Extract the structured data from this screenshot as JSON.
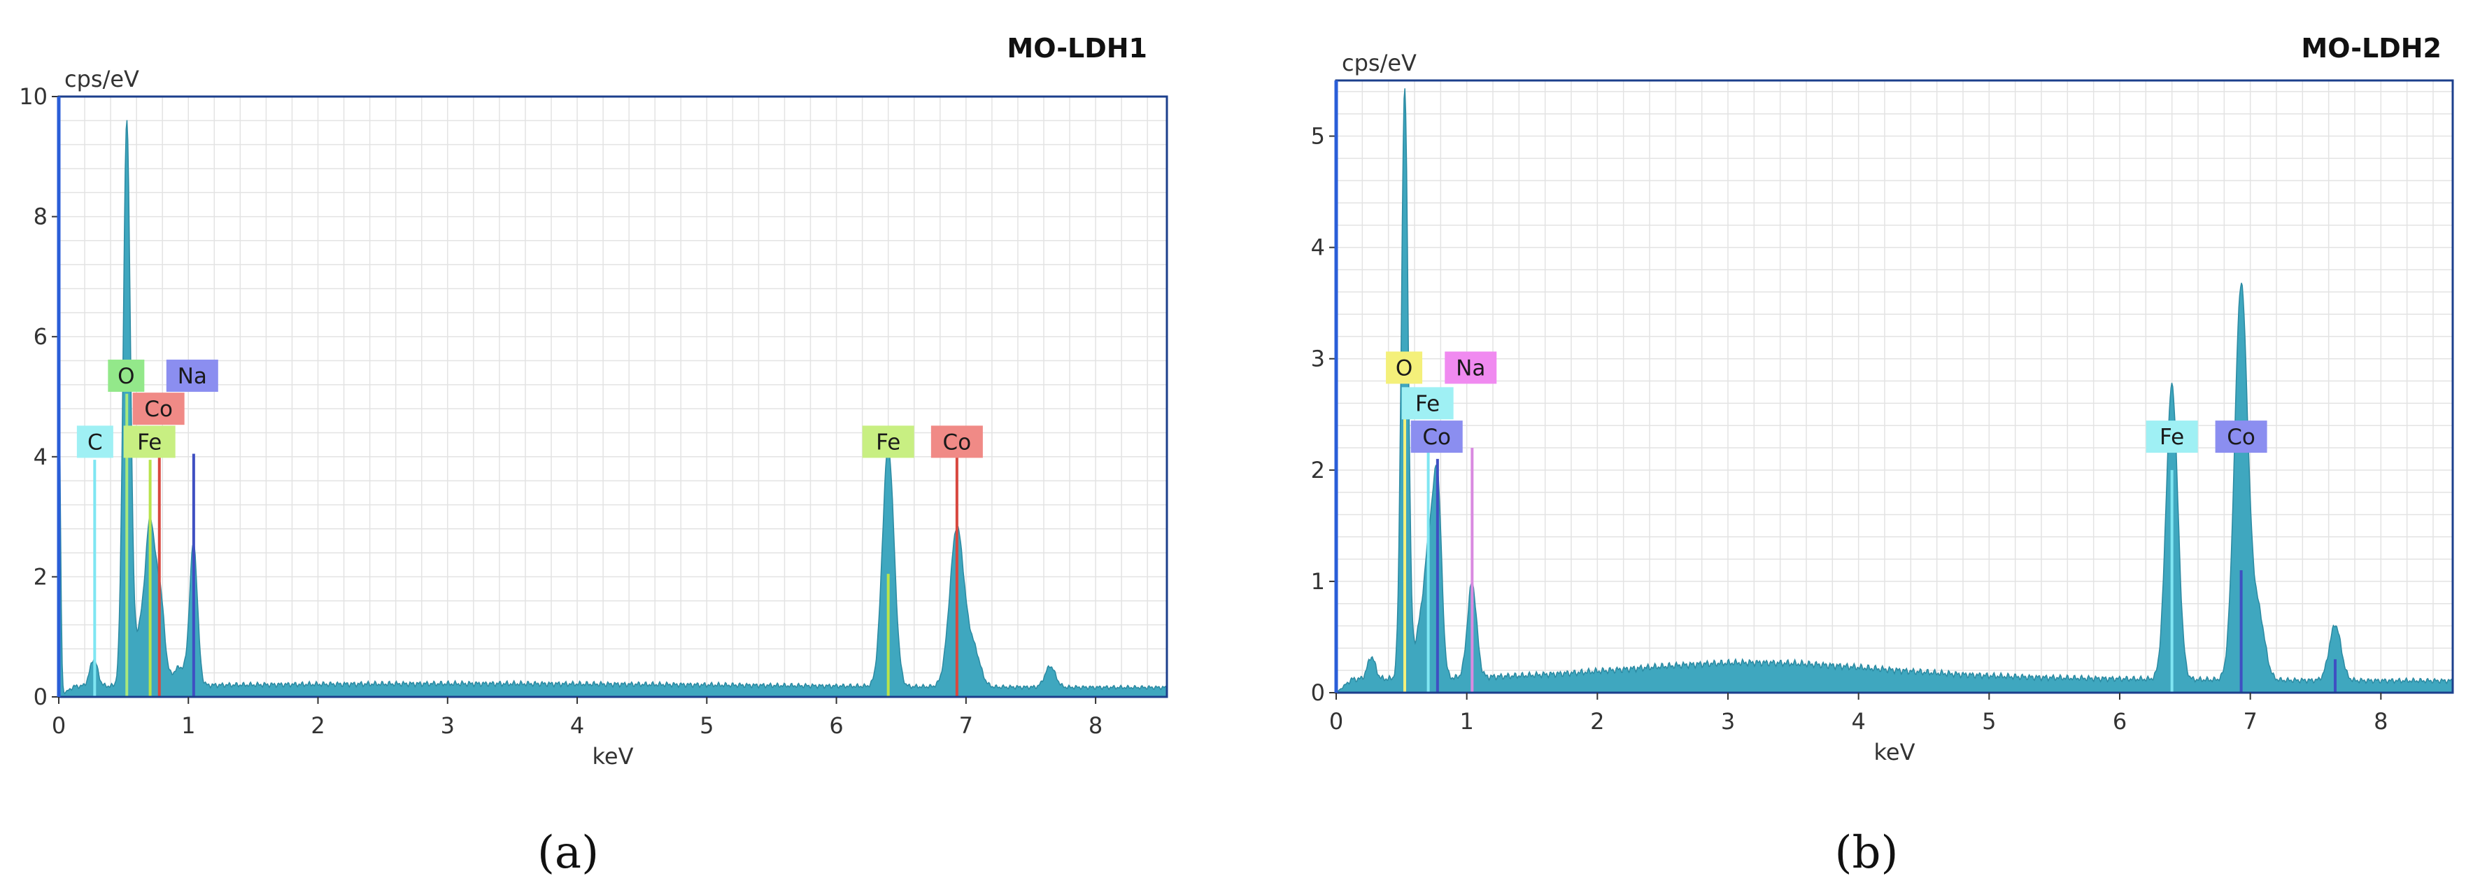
{
  "colors": {
    "spectrum_fill": "#3fa7bf",
    "spectrum_stroke": "#2b8aa2",
    "frame": "#1c3f8c",
    "grid": "#e3e3e3",
    "axis_text": "#333333"
  },
  "chart_data": [
    {
      "type": "area",
      "panel_label": "(a)",
      "title": "MO-LDH1",
      "ylabel": "cps/eV",
      "xlabel": "keV",
      "xlim": [
        0,
        8.55
      ],
      "ylim": [
        0,
        10
      ],
      "x_ticks": [
        "0",
        "1",
        "2",
        "3",
        "4",
        "5",
        "6",
        "7",
        "8"
      ],
      "y_ticks": [
        "0",
        "2",
        "4",
        "6",
        "8",
        "10"
      ],
      "y_tick_values": [
        0,
        2,
        4,
        6,
        8,
        10
      ],
      "x_minor_step": 0.2,
      "y_minor_step": 0.4,
      "baseline": 0.22,
      "peaks": [
        {
          "x": 0.0,
          "h": 5.6,
          "w": 0.012
        },
        {
          "x": 0.27,
          "h": 0.45,
          "w": 0.03
        },
        {
          "x": 0.525,
          "h": 9.4,
          "w": 0.028
        },
        {
          "x": 0.63,
          "h": 0.9,
          "w": 0.04
        },
        {
          "x": 0.705,
          "h": 2.5,
          "w": 0.035
        },
        {
          "x": 0.78,
          "h": 1.5,
          "w": 0.035
        },
        {
          "x": 0.93,
          "h": 0.3,
          "w": 0.05
        },
        {
          "x": 1.04,
          "h": 2.35,
          "w": 0.03
        },
        {
          "x": 6.4,
          "h": 4.0,
          "w": 0.045
        },
        {
          "x": 6.93,
          "h": 2.65,
          "w": 0.055
        },
        {
          "x": 7.06,
          "h": 0.6,
          "w": 0.05
        },
        {
          "x": 7.65,
          "h": 0.35,
          "w": 0.04
        }
      ],
      "lines": [
        {
          "x": 0.277,
          "y": 3.95,
          "color": "#7fe6f2"
        },
        {
          "x": 0.525,
          "y": 5.05,
          "color": "#a8e87d"
        },
        {
          "x": 0.705,
          "y": 3.95,
          "color": "#b8e44c"
        },
        {
          "x": 0.776,
          "y": 4.0,
          "color": "#d8483f"
        },
        {
          "x": 1.041,
          "y": 4.05,
          "color": "#3f4fc2"
        },
        {
          "x": 6.4,
          "y": 2.05,
          "color": "#b8e44c"
        },
        {
          "x": 6.93,
          "y": 4.05,
          "color": "#d8483f"
        }
      ],
      "labels": [
        {
          "text": "O",
          "x": 0.52,
          "y": 5.35,
          "bg": "#93e88a"
        },
        {
          "text": "Na",
          "x": 1.03,
          "y": 5.35,
          "bg": "#8b8ef0"
        },
        {
          "text": "Co",
          "x": 0.77,
          "y": 4.8,
          "bg": "#f08a86"
        },
        {
          "text": "C",
          "x": 0.28,
          "y": 4.25,
          "bg": "#9ff0f4"
        },
        {
          "text": "Fe",
          "x": 0.7,
          "y": 4.25,
          "bg": "#c8ef82"
        },
        {
          "text": "Fe",
          "x": 6.4,
          "y": 4.25,
          "bg": "#c8ef82"
        },
        {
          "text": "Co",
          "x": 6.93,
          "y": 4.25,
          "bg": "#f08a86"
        }
      ]
    },
    {
      "type": "area",
      "panel_label": "(b)",
      "title": "MO-LDH2",
      "ylabel": "cps/eV",
      "xlabel": "keV",
      "xlim": [
        0,
        8.55
      ],
      "ylim": [
        0,
        5.5
      ],
      "x_ticks": [
        "0",
        "1",
        "2",
        "3",
        "4",
        "5",
        "6",
        "7",
        "8"
      ],
      "y_ticks": [
        "0",
        "1",
        "2",
        "3",
        "4",
        "5"
      ],
      "y_tick_values": [
        0,
        1,
        2,
        3,
        4,
        5
      ],
      "x_minor_step": 0.2,
      "y_minor_step": 0.2,
      "baseline": 0.15,
      "peaks": [
        {
          "x": 0.27,
          "h": 0.2,
          "w": 0.03
        },
        {
          "x": 0.525,
          "h": 5.3,
          "w": 0.026
        },
        {
          "x": 0.64,
          "h": 0.4,
          "w": 0.04
        },
        {
          "x": 0.72,
          "h": 1.2,
          "w": 0.04
        },
        {
          "x": 0.78,
          "h": 1.45,
          "w": 0.03
        },
        {
          "x": 1.04,
          "h": 0.85,
          "w": 0.035
        },
        {
          "x": 3.2,
          "h": 0.12,
          "w": 0.9
        },
        {
          "x": 6.4,
          "h": 2.65,
          "w": 0.045
        },
        {
          "x": 6.93,
          "h": 3.55,
          "w": 0.05
        },
        {
          "x": 7.06,
          "h": 0.6,
          "w": 0.05
        },
        {
          "x": 7.65,
          "h": 0.5,
          "w": 0.045
        }
      ],
      "lines": [
        {
          "x": 0.525,
          "y": 2.65,
          "color": "#f4f07a"
        },
        {
          "x": 0.705,
          "y": 2.25,
          "color": "#7fe6f2"
        },
        {
          "x": 0.776,
          "y": 2.1,
          "color": "#3f4fc2"
        },
        {
          "x": 1.041,
          "y": 2.2,
          "color": "#d98ae0"
        },
        {
          "x": 6.4,
          "y": 2.0,
          "color": "#7fe6f2"
        },
        {
          "x": 6.93,
          "y": 1.1,
          "color": "#3f4fc2"
        },
        {
          "x": 7.65,
          "y": 0.3,
          "color": "#3f4fc2"
        }
      ],
      "labels": [
        {
          "text": "O",
          "x": 0.52,
          "y": 2.92,
          "bg": "#f4f07a"
        },
        {
          "text": "Na",
          "x": 1.03,
          "y": 2.92,
          "bg": "#f08af0"
        },
        {
          "text": "Fe",
          "x": 0.7,
          "y": 2.6,
          "bg": "#9ff0f4"
        },
        {
          "text": "Co",
          "x": 0.77,
          "y": 2.3,
          "bg": "#8b8ef0"
        },
        {
          "text": "Fe",
          "x": 6.4,
          "y": 2.3,
          "bg": "#9ff0f4"
        },
        {
          "text": "Co",
          "x": 6.93,
          "y": 2.3,
          "bg": "#8b8ef0"
        }
      ]
    }
  ]
}
